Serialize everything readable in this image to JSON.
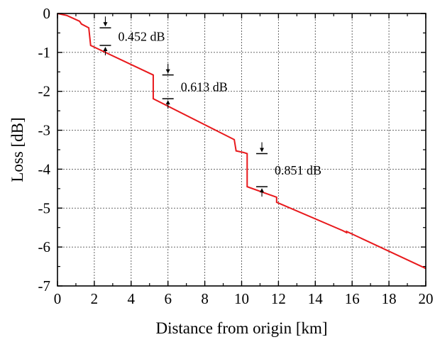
{
  "chart_data": {
    "type": "line",
    "title": "",
    "xlabel": "Distance from origin [km]",
    "ylabel": "Loss [dB]",
    "xlim": [
      0,
      20
    ],
    "ylim": [
      -7,
      0
    ],
    "xticks": [
      "0",
      "2",
      "4",
      "6",
      "8",
      "10",
      "12",
      "14",
      "16",
      "18",
      "20"
    ],
    "yticks": [
      "0",
      "-1",
      "-2",
      "-3",
      "-4",
      "-5",
      "-6",
      "-7"
    ],
    "grid": true,
    "legend": "none",
    "line_color": "#e8191c",
    "series": [
      {
        "x": [
          0,
          0.5,
          1.2,
          1.3,
          1.7,
          1.8,
          5.2,
          5.2,
          9.6,
          9.7,
          10.1,
          10.3,
          10.3,
          11.9,
          11.9,
          15.5,
          15.7,
          15.7,
          20
        ],
        "y": [
          0,
          -0.05,
          -0.2,
          -0.27,
          -0.37,
          -0.82,
          -1.58,
          -2.19,
          -3.24,
          -3.53,
          -3.57,
          -3.6,
          -4.45,
          -4.72,
          -4.85,
          -5.58,
          -5.63,
          -5.6,
          -6.55
        ]
      }
    ],
    "annotations": [
      {
        "text": "0.452 dB",
        "x": 2.6,
        "y_top": -0.37,
        "y_bottom": -0.82
      },
      {
        "text": "0.613 dB",
        "x": 6.0,
        "y_top": -1.58,
        "y_bottom": -2.19
      },
      {
        "text": "0.851 dB",
        "x": 11.1,
        "y_top": -3.6,
        "y_bottom": -4.45
      }
    ]
  }
}
